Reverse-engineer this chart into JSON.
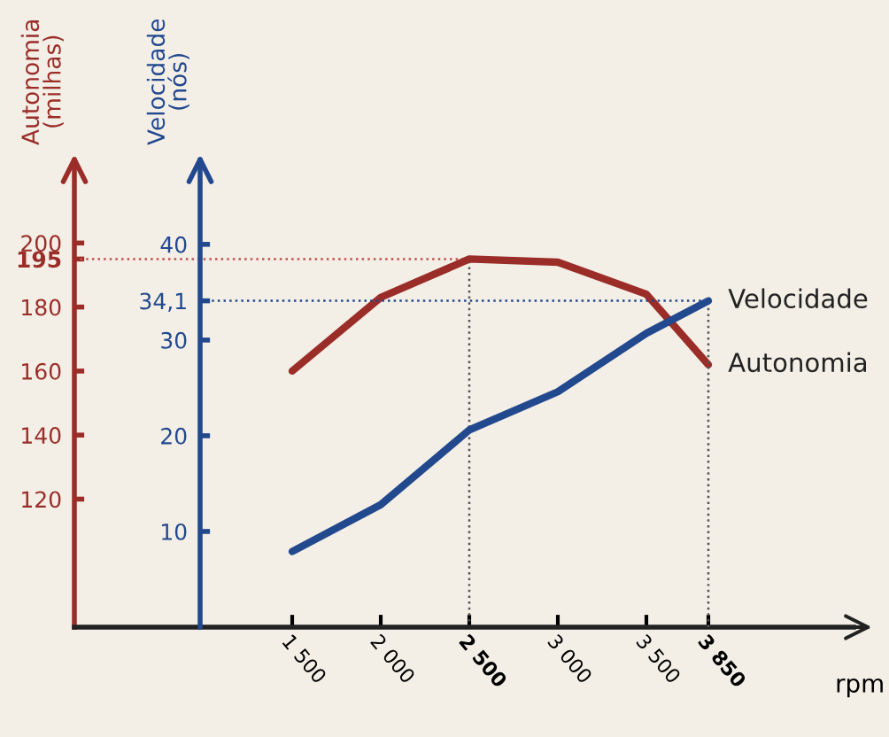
{
  "chart_data": {
    "type": "line",
    "ylabel": "Autonomia\n(milhas)",
    "y2label": "Velocidade\n(nós)",
    "xlabel": "rpm",
    "x": [
      1500,
      2000,
      2500,
      3000,
      3500,
      3850
    ],
    "series": [
      {
        "name": "Velocidade",
        "color": "#22488e",
        "axis": "y2",
        "values": [
          7.9,
          12.8,
          20.6,
          24.6,
          30.7,
          34.1
        ]
      },
      {
        "name": "Autonomia",
        "color": "#9b2d28",
        "values": [
          160,
          183,
          195,
          194,
          184,
          162
        ]
      }
    ],
    "xlim": [
      270,
      4670
    ],
    "xticks": [
      {
        "value": 1500,
        "label": "1 500"
      },
      {
        "value": 2000,
        "label": "2 000"
      },
      {
        "value": 2500,
        "label": "2 500"
      },
      {
        "value": 3000,
        "label": "3 000"
      },
      {
        "value": 3500,
        "label": "3 500"
      },
      {
        "value": 3850,
        "label": "3 850"
      }
    ],
    "ylim": [
      80,
      225
    ],
    "yticks": [
      120,
      140,
      160,
      180,
      195,
      200
    ],
    "y2lim": [
      0,
      48.5
    ],
    "y2ticks": [
      10,
      20,
      30,
      {
        "value": 34.1,
        "label": "34,1"
      },
      40
    ],
    "ref_lines": [
      {
        "axis": "y",
        "value": 195,
        "color": "#c0504d",
        "line_style": "dotted"
      },
      {
        "axis": "y2",
        "value": 34.1,
        "color": "#22488e",
        "line_style": "dotted"
      },
      {
        "axis": "x",
        "value": 2500,
        "color": "#555555",
        "line_style": "dotted"
      },
      {
        "axis": "x",
        "value": 3850,
        "color": "#555555",
        "line_style": "dotted"
      }
    ],
    "grid": false,
    "marker": "none",
    "line_style": "solid"
  }
}
